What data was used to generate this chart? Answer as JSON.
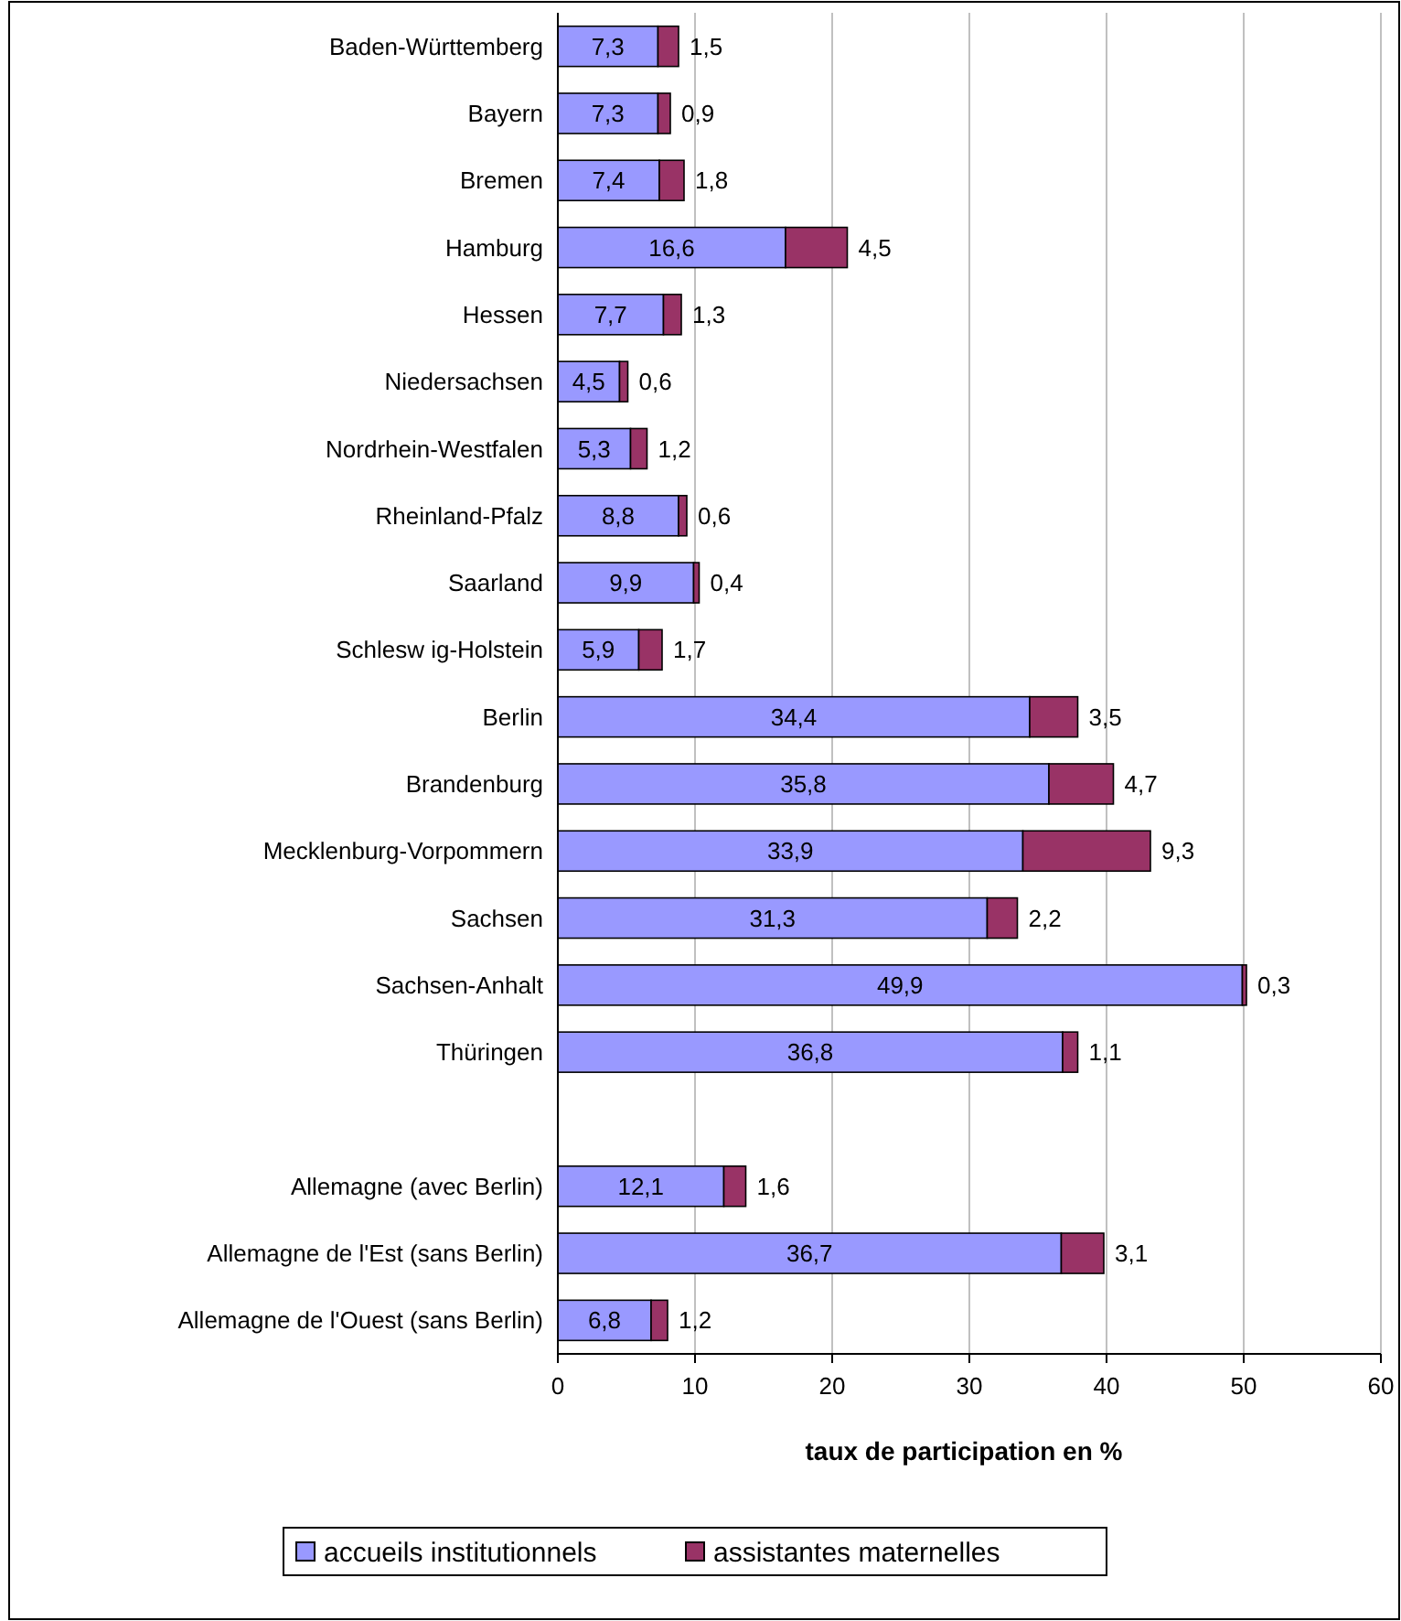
{
  "chart_data": {
    "type": "bar",
    "orientation": "horizontal",
    "stacked": true,
    "categories": [
      "Baden-Württemberg",
      "Bayern",
      "Bremen",
      "Hamburg",
      "Hessen",
      "Niedersachsen",
      "Nordrhein-Westfalen",
      "Rheinland-Pfalz",
      "Saarland",
      "Schlesw ig-Holstein",
      "Berlin",
      "Brandenburg",
      "Mecklenburg-Vorpommern",
      "Sachsen",
      "Sachsen-Anhalt",
      "Thüringen",
      null,
      "Allemagne (avec Berlin)",
      "Allemagne de l'Est (sans Berlin)",
      "Allemagne de l'Ouest (sans Berlin)"
    ],
    "series": [
      {
        "name": "accueils institutionnels",
        "color": "#9999ff",
        "values": [
          7.3,
          7.3,
          7.4,
          16.6,
          7.7,
          4.5,
          5.3,
          8.8,
          9.9,
          5.9,
          34.4,
          35.8,
          33.9,
          31.3,
          49.9,
          36.8,
          null,
          12.1,
          36.7,
          6.8
        ],
        "value_labels": [
          "7,3",
          "7,3",
          "7,4",
          "16,6",
          "7,7",
          "4,5",
          "5,3",
          "8,8",
          "9,9",
          "5,9",
          "34,4",
          "35,8",
          "33,9",
          "31,3",
          "49,9",
          "36,8",
          null,
          "12,1",
          "36,7",
          "6,8"
        ]
      },
      {
        "name": "assistantes maternelles",
        "color": "#993366",
        "values": [
          1.5,
          0.9,
          1.8,
          4.5,
          1.3,
          0.6,
          1.2,
          0.6,
          0.4,
          1.7,
          3.5,
          4.7,
          9.3,
          2.2,
          0.3,
          1.1,
          null,
          1.6,
          3.1,
          1.2
        ],
        "value_labels": [
          "1,5",
          "0,9",
          "1,8",
          "4,5",
          "1,3",
          "0,6",
          "1,2",
          "0,6",
          "0,4",
          "1,7",
          "3,5",
          "4,7",
          "9,3",
          "2,2",
          "0,3",
          "1,1",
          null,
          "1,6",
          "3,1",
          "1,2"
        ]
      }
    ],
    "xlim": [
      0,
      60
    ],
    "xticks": [
      0,
      10,
      20,
      30,
      40,
      50,
      60
    ],
    "xlabel": "taux de participation en %",
    "grid": "x",
    "legend": "bottom"
  }
}
